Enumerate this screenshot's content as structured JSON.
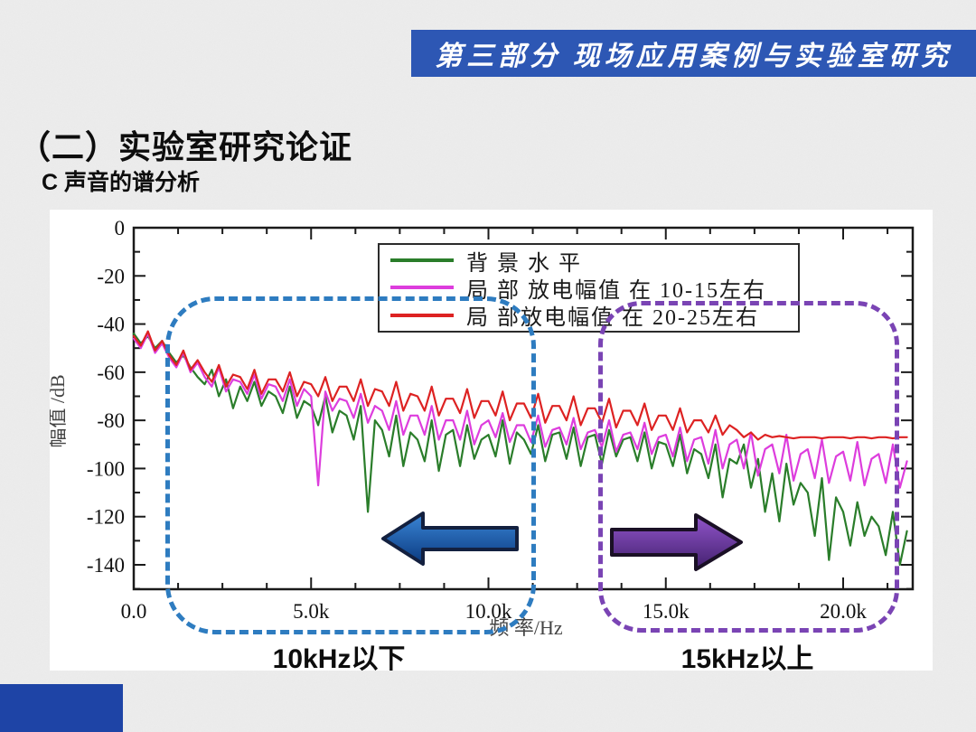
{
  "header": {
    "banner_title": "第三部分 现场应用案例与实验室研究"
  },
  "title": "（二）实验室研究论证",
  "subtitle": "C 声音的谱分析",
  "annotations": {
    "left_range_label": "10kHz以下",
    "right_range_label": "15kHz以上"
  },
  "colors": {
    "banner_blue": "#2d57b4",
    "corner_rect_blue": "#1e44a6",
    "blue_dash_box": "#2e7cc0",
    "purple_dash_box": "#7a44b4",
    "left_arrow_gradient": [
      "#3b86d6",
      "#0a3a80"
    ],
    "left_arrow_outline": "#13203f",
    "right_arrow_gradient": [
      "#9256cc",
      "#43206e"
    ],
    "right_arrow_outline": "#1a1025",
    "axis_color": "#1a1a1a"
  },
  "chart_data": {
    "type": "line",
    "xlabel": "频 率/Hz",
    "ylabel": "幅值 /dB",
    "xlim": [
      0,
      21.96
    ],
    "ylim": [
      0,
      -150
    ],
    "x_step_khz": 0.2,
    "x_ticks": [
      0,
      5,
      10,
      15,
      20
    ],
    "x_tick_labels": [
      "0.0",
      "5.0k",
      "10.0k",
      "15.0k",
      "20.0k"
    ],
    "x_minor_step": 1.25,
    "y_ticks": [
      0,
      -20,
      -40,
      -60,
      -80,
      -100,
      -120,
      -140
    ],
    "y_tick_labels": [
      "0",
      "-20",
      "-40",
      "-60",
      "-80",
      "-100",
      "-120",
      "-140"
    ],
    "y_minor_step": 10,
    "grid": false,
    "legend_position": "top-center",
    "series": [
      {
        "name": "背 景 水 平",
        "color": "#2a7d2a",
        "values": [
          -44,
          -48,
          -45,
          -50,
          -47,
          -52,
          -56,
          -53,
          -58,
          -62,
          -65,
          -59,
          -70,
          -63,
          -75,
          -66,
          -72,
          -64,
          -74,
          -68,
          -70,
          -77,
          -66,
          -79,
          -72,
          -74,
          -82,
          -70,
          -85,
          -76,
          -78,
          -88,
          -74,
          -118,
          -80,
          -84,
          -95,
          -78,
          -99,
          -85,
          -88,
          -97,
          -80,
          -101,
          -86,
          -84,
          -99,
          -82,
          -96,
          -88,
          -86,
          -95,
          -80,
          -98,
          -85,
          -88,
          -94,
          -82,
          -97,
          -86,
          -85,
          -96,
          -83,
          -99,
          -87,
          -86,
          -98,
          -84,
          -95,
          -88,
          -87,
          -97,
          -85,
          -100,
          -89,
          -90,
          -99,
          -86,
          -102,
          -92,
          -94,
          -104,
          -90,
          -112,
          -96,
          -98,
          -90,
          -108,
          -96,
          -118,
          -102,
          -122,
          -98,
          -115,
          -106,
          -110,
          -128,
          -104,
          -138,
          -112,
          -118,
          -132,
          -114,
          -128,
          -120,
          -124,
          -136,
          -118,
          -140,
          -126
        ]
      },
      {
        "name": "局 部 放电幅值 在 10-15左右",
        "color": "#dd3ddd",
        "values": [
          -46,
          -50,
          -44,
          -52,
          -48,
          -54,
          -58,
          -52,
          -60,
          -56,
          -62,
          -66,
          -58,
          -68,
          -63,
          -64,
          -69,
          -61,
          -71,
          -65,
          -66,
          -72,
          -63,
          -74,
          -67,
          -70,
          -107,
          -68,
          -76,
          -71,
          -72,
          -79,
          -69,
          -81,
          -74,
          -76,
          -84,
          -72,
          -86,
          -78,
          -78,
          -86,
          -74,
          -88,
          -80,
          -80,
          -88,
          -76,
          -90,
          -82,
          -80,
          -87,
          -77,
          -89,
          -82,
          -82,
          -89,
          -78,
          -91,
          -84,
          -83,
          -90,
          -79,
          -92,
          -85,
          -84,
          -91,
          -80,
          -93,
          -86,
          -85,
          -92,
          -81,
          -94,
          -87,
          -86,
          -95,
          -83,
          -97,
          -88,
          -87,
          -98,
          -84,
          -100,
          -90,
          -88,
          -100,
          -85,
          -103,
          -92,
          -90,
          -102,
          -86,
          -105,
          -94,
          -92,
          -104,
          -88,
          -106,
          -95,
          -93,
          -105,
          -89,
          -107,
          -96,
          -94,
          -106,
          -90,
          -108,
          -97
        ]
      },
      {
        "name": "局 部放电幅值 在 20-25左右",
        "color": "#dd2222",
        "values": [
          -45,
          -49,
          -43,
          -51,
          -47,
          -53,
          -57,
          -51,
          -59,
          -55,
          -60,
          -64,
          -57,
          -66,
          -61,
          -62,
          -67,
          -59,
          -69,
          -63,
          -63,
          -68,
          -60,
          -70,
          -64,
          -65,
          -70,
          -62,
          -72,
          -66,
          -66,
          -72,
          -63,
          -74,
          -67,
          -68,
          -74,
          -64,
          -76,
          -69,
          -70,
          -76,
          -66,
          -78,
          -71,
          -71,
          -77,
          -67,
          -79,
          -72,
          -72,
          -78,
          -68,
          -80,
          -73,
          -73,
          -79,
          -69,
          -81,
          -74,
          -74,
          -80,
          -70,
          -82,
          -75,
          -75,
          -81,
          -71,
          -83,
          -76,
          -76,
          -82,
          -73,
          -84,
          -78,
          -78,
          -84,
          -75,
          -85,
          -80,
          -80,
          -85,
          -78,
          -86,
          -82,
          -84,
          -87,
          -85,
          -88,
          -86,
          -87,
          -86.5,
          -87,
          -87.5,
          -87,
          -87,
          -87,
          -87.5,
          -87,
          -87,
          -87,
          -87.5,
          -87,
          -87,
          -87.5,
          -87,
          -87,
          -87.5,
          -87,
          -87
        ]
      }
    ]
  }
}
